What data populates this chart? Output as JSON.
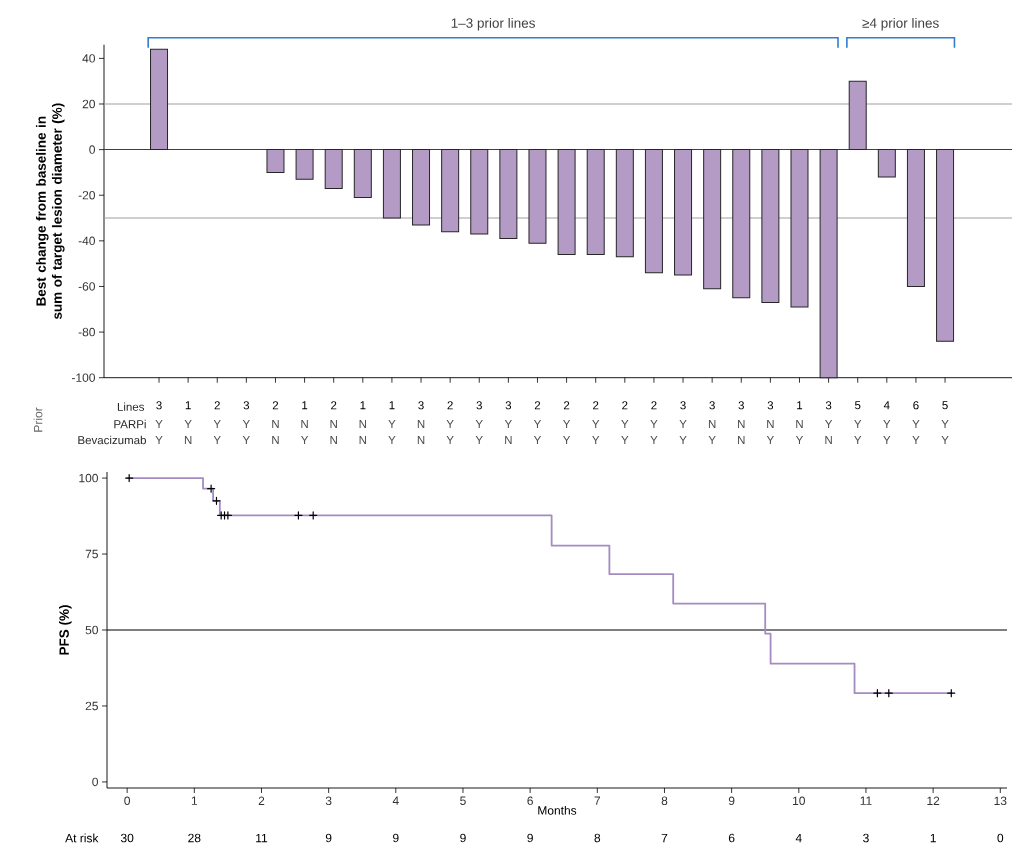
{
  "chart_data": [
    {
      "type": "bar",
      "ylabel": "Best change from baseline in sum of target lesion diameter (%)",
      "xlabel": "Lines",
      "categories": [
        "3",
        "1",
        "2",
        "3",
        "2",
        "1",
        "2",
        "1",
        "1",
        "3",
        "2",
        "3",
        "3",
        "2",
        "2",
        "2",
        "2",
        "2",
        "3",
        "3",
        "3",
        "3",
        "1",
        "3",
        "5",
        "4",
        "6",
        "5"
      ],
      "values": [
        44,
        null,
        null,
        null,
        -10,
        -13,
        -17,
        -21,
        -30,
        -33,
        -36,
        -37,
        -39,
        -41,
        -46,
        -46,
        -47,
        -54,
        -55,
        -61,
        -65,
        -67,
        -69,
        -100,
        30,
        -12,
        -60,
        -84
      ],
      "color": "#b39bc6",
      "ylim": [
        -100,
        46
      ],
      "yticks": [
        -100,
        -80,
        -60,
        -40,
        -20,
        0,
        20,
        40
      ],
      "ref_lines": [
        {
          "axis": "y",
          "value": 20,
          "color": "#a0a0a0"
        },
        {
          "axis": "y",
          "value": -30,
          "color": "#a0a0a0"
        },
        {
          "axis": "y",
          "value": 0,
          "color": "#404040"
        }
      ],
      "annotations": [
        "1–3 prior lines",
        "≥4 prior lines",
        "Prior",
        "PARPi",
        "Bevacizumab",
        "Y",
        "Y",
        "Y",
        "Y",
        "N",
        "N",
        "N",
        "N",
        "Y",
        "N",
        "Y",
        "Y",
        "Y",
        "Y",
        "Y",
        "Y",
        "Y",
        "Y",
        "Y",
        "N",
        "N",
        "N",
        "N",
        "Y",
        "Y",
        "Y",
        "Y",
        "Y",
        "Y",
        "N",
        "Y",
        "Y",
        "N",
        "Y",
        "N",
        "N",
        "Y",
        "N",
        "Y",
        "Y",
        "N",
        "Y",
        "Y",
        "Y",
        "Y",
        "Y",
        "Y",
        "Y",
        "N",
        "Y",
        "Y",
        "N",
        "Y",
        "Y",
        "Y",
        "Y"
      ]
    },
    {
      "type": "step",
      "xlabel": "Months",
      "ylabel": "PFS (%)",
      "series": [
        {
          "type": "step",
          "color": "#a58bc4",
          "marker": "none",
          "x": [
            0,
            1.13,
            1.28,
            1.38,
            6.32,
            7.18,
            8.13,
            9.5,
            9.58,
            10.83,
            12.28
          ],
          "values": [
            100,
            96.5,
            92.5,
            87.7,
            77.8,
            68.4,
            58.7,
            48.8,
            38.9,
            29.2,
            29.2
          ]
        },
        {
          "type": "scatter",
          "color": "#000000",
          "marker": "cross",
          "x": [
            0.03,
            1.25,
            1.33,
            1.4,
            1.45,
            1.5,
            2.55,
            2.77,
            11.17,
            11.34,
            12.27
          ],
          "values": [
            100,
            96.5,
            92.5,
            87.7,
            87.7,
            87.7,
            87.7,
            87.7,
            29.2,
            29.2,
            29.2
          ]
        }
      ],
      "xlim": [
        -0.3,
        13.1
      ],
      "ylim": [
        -2,
        102
      ],
      "xticks": [
        0,
        1,
        2,
        3,
        4,
        5,
        6,
        7,
        8,
        9,
        10,
        11,
        12,
        13
      ],
      "yticks": [
        0,
        25,
        50,
        75,
        100
      ],
      "ref_lines": [
        {
          "axis": "y",
          "value": 50,
          "color": "#000000"
        }
      ],
      "annotations": [
        "At risk",
        "30",
        "28",
        "11",
        "9",
        "9",
        "9",
        "9",
        "8",
        "7",
        "6",
        "4",
        "3",
        "1",
        "0"
      ]
    }
  ]
}
